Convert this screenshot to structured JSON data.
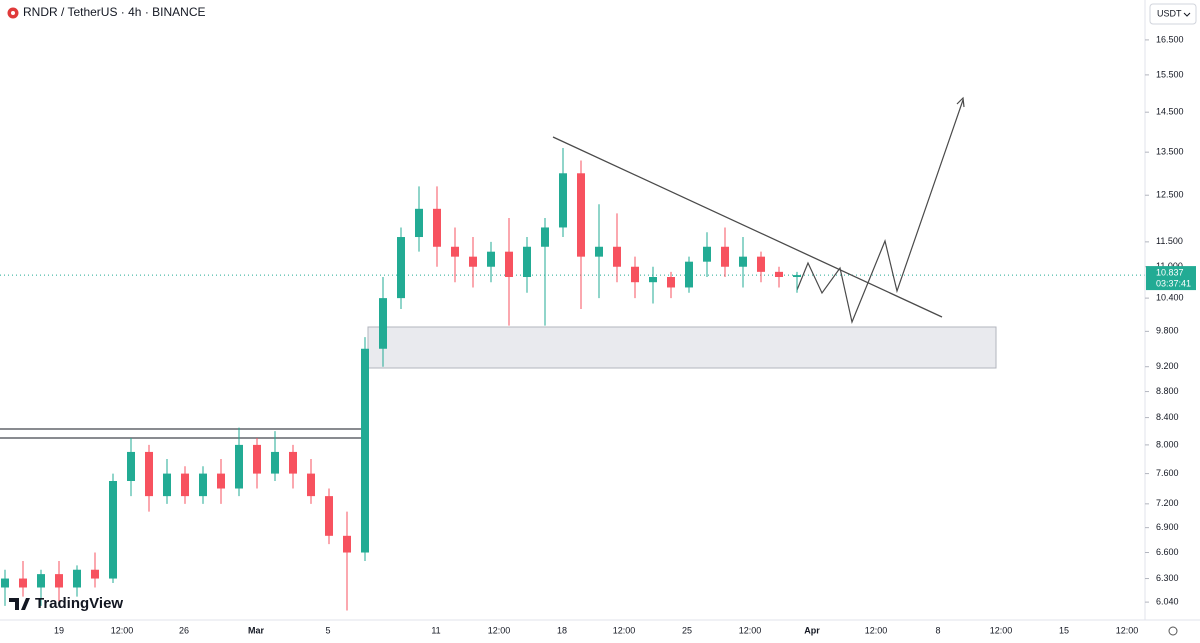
{
  "chart_data": {
    "type": "candlestick",
    "title": "RNDR / TetherUS · 4h · BINANCE",
    "brand": "TradingView",
    "currency": "USDT",
    "log_scale": true,
    "up_color": "#22ab94",
    "down_color": "#f7525f",
    "ylim": [
      5.85,
      17.72
    ],
    "yticks": [
      {
        "value": 16.5,
        "label": "16.500"
      },
      {
        "value": 15.5,
        "label": "15.500"
      },
      {
        "value": 14.5,
        "label": "14.500"
      },
      {
        "value": 13.5,
        "label": "13.500"
      },
      {
        "value": 12.5,
        "label": "12.500"
      },
      {
        "value": 11.5,
        "label": "11.500"
      },
      {
        "value": 11,
        "label": "11.000"
      },
      {
        "value": 10.4,
        "label": "10.400"
      },
      {
        "value": 9.8,
        "label": "9.800"
      },
      {
        "value": 9.2,
        "label": "9.200"
      },
      {
        "value": 8.8,
        "label": "8.800"
      },
      {
        "value": 8.4,
        "label": "8.400"
      },
      {
        "value": 8,
        "label": "8.000"
      },
      {
        "value": 7.6,
        "label": "7.600"
      },
      {
        "value": 7.2,
        "label": "7.200"
      },
      {
        "value": 6.9,
        "label": "6.900"
      },
      {
        "value": 6.6,
        "label": "6.600"
      },
      {
        "value": 6.3,
        "label": "6.300"
      },
      {
        "value": 6.04,
        "label": "6.040"
      }
    ],
    "x_labels": [
      "19",
      "12:00",
      "26",
      "Mar",
      "5",
      "11",
      "12:00",
      "18",
      "12:00",
      "25",
      "12:00",
      "Apr",
      "12:00",
      "8",
      "12:00",
      "15",
      "12:00"
    ],
    "last_price": 10.837,
    "countdown": "03:37:41",
    "open": [
      6.2,
      6.3,
      6.2,
      6.35,
      6.2,
      6.4,
      6.3,
      7.5,
      7.9,
      7.3,
      7.6,
      7.3,
      7.6,
      7.4,
      8.0,
      7.6,
      7.9,
      7.6,
      7.3,
      6.8,
      6.6,
      9.5,
      10.4,
      11.6,
      12.2,
      11.4,
      11.2,
      11.0,
      11.3,
      10.8,
      11.4,
      11.8,
      13.0,
      11.2,
      11.4,
      11.0,
      10.7,
      10.8,
      10.6,
      11.1,
      11.4,
      11.0,
      11.2,
      10.9,
      10.8
    ],
    "high": [
      6.4,
      6.5,
      6.4,
      6.5,
      6.45,
      6.6,
      7.6,
      8.1,
      8.0,
      7.8,
      7.7,
      7.7,
      7.8,
      8.25,
      8.1,
      8.2,
      8.0,
      7.8,
      7.4,
      7.1,
      9.7,
      10.8,
      11.8,
      12.7,
      12.7,
      11.8,
      11.6,
      11.5,
      12.0,
      11.6,
      12.0,
      13.6,
      13.3,
      12.3,
      12.1,
      11.2,
      11.0,
      10.9,
      11.2,
      11.7,
      11.8,
      11.6,
      11.3,
      11.0,
      10.9
    ],
    "low": [
      6.0,
      6.1,
      6.0,
      6.05,
      6.1,
      6.2,
      6.25,
      7.3,
      7.1,
      7.2,
      7.2,
      7.2,
      7.2,
      7.3,
      7.4,
      7.5,
      7.4,
      7.2,
      6.7,
      5.95,
      6.5,
      9.2,
      10.2,
      11.3,
      11.0,
      10.7,
      10.6,
      10.7,
      9.9,
      10.5,
      9.9,
      11.6,
      10.2,
      10.4,
      10.7,
      10.4,
      10.3,
      10.4,
      10.5,
      10.8,
      10.8,
      10.6,
      10.7,
      10.6,
      10.5
    ],
    "close": [
      6.3,
      6.2,
      6.35,
      6.2,
      6.4,
      6.3,
      7.5,
      7.9,
      7.3,
      7.6,
      7.3,
      7.6,
      7.4,
      8.0,
      7.6,
      7.9,
      7.6,
      7.3,
      6.8,
      6.6,
      9.5,
      10.4,
      11.6,
      12.2,
      11.4,
      11.2,
      11.0,
      11.3,
      10.8,
      11.4,
      11.8,
      13.0,
      11.2,
      11.4,
      11.0,
      10.7,
      10.8,
      10.6,
      11.1,
      11.4,
      11.0,
      11.2,
      10.9,
      10.8,
      10.837
    ]
  }
}
